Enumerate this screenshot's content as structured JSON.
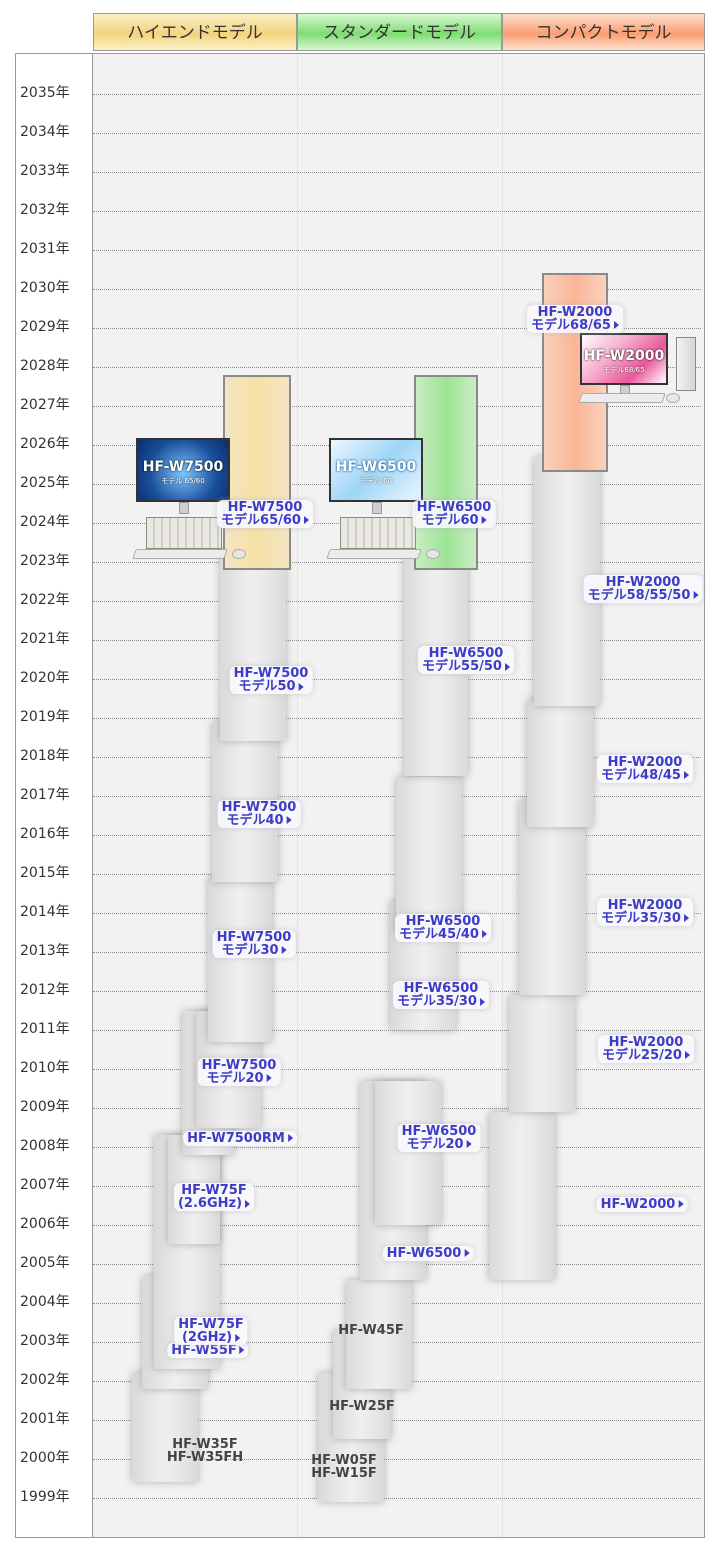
{
  "headers": {
    "high": "ハイエンドモデル",
    "standard": "スタンダードモデル",
    "compact": "コンパクトモデル"
  },
  "years": [
    "2035年",
    "2034年",
    "2033年",
    "2032年",
    "2031年",
    "2030年",
    "2029年",
    "2028年",
    "2027年",
    "2026年",
    "2025年",
    "2024年",
    "2023年",
    "2022年",
    "2021年",
    "2020年",
    "2019年",
    "2018年",
    "2017年",
    "2016年",
    "2015年",
    "2014年",
    "2013年",
    "2012年",
    "2011年",
    "2010年",
    "2009年",
    "2008年",
    "2007年",
    "2006年",
    "2005年",
    "2004年",
    "2003年",
    "2002年",
    "2001年",
    "2000年",
    "1999年"
  ],
  "products": [
    {
      "column": "high",
      "lines": [
        "HF-W35F",
        "HF-W35FH"
      ],
      "link": false,
      "from": 1999.4,
      "to": 2002.2
    },
    {
      "column": "high",
      "lines": [
        "HF-W55F"
      ],
      "link": true,
      "from": 2001.8,
      "to": 2004.7
    },
    {
      "column": "high",
      "lines": [
        "HF-W75F",
        "(2GHz)"
      ],
      "link": true,
      "from": 2002.3,
      "to": 2008.3
    },
    {
      "column": "high",
      "lines": [
        "HF-W75F",
        "(2.6GHz)"
      ],
      "link": true,
      "from": 2005.5,
      "to": 2008.3
    },
    {
      "column": "high",
      "lines": [
        "HF-W7500RM"
      ],
      "link": true,
      "from": 2007.8,
      "to": 2011.5
    },
    {
      "column": "high",
      "lines": [
        "HF-W7500",
        "モデル20"
      ],
      "link": true,
      "from": 2008.5,
      "to": 2011.5
    },
    {
      "column": "high",
      "lines": [
        "HF-W7500",
        "モデル30"
      ],
      "link": true,
      "from": 2010.7,
      "to": 2014.9
    },
    {
      "column": "high",
      "lines": [
        "HF-W7500",
        "モデル40"
      ],
      "link": true,
      "from": 2014.8,
      "to": 2018.9
    },
    {
      "column": "high",
      "lines": [
        "HF-W7500",
        "モデル50"
      ],
      "link": true,
      "from": 2018.4,
      "to": 2023.3
    },
    {
      "column": "high",
      "lines": [
        "HF-W7500",
        "モデル65/60"
      ],
      "link": true,
      "from": 2022.8,
      "to": 2027.8,
      "current": true
    },
    {
      "column": "standard",
      "lines": [
        "HF-W05F",
        "HF-W15F"
      ],
      "link": false,
      "from": 1998.9,
      "to": 2002.2
    },
    {
      "column": "standard",
      "lines": [
        "HF-W25F"
      ],
      "link": false,
      "from": 2000.5,
      "to": 2003.3
    },
    {
      "column": "standard",
      "lines": [
        "HF-W45F"
      ],
      "link": false,
      "from": 2001.8,
      "to": 2004.6
    },
    {
      "column": "standard",
      "lines": [
        "HF-W6500"
      ],
      "link": true,
      "from": 2004.6,
      "to": 2009.7
    },
    {
      "column": "standard",
      "lines": [
        "HF-W6500",
        "モデル20"
      ],
      "link": true,
      "from": 2006.0,
      "to": 2009.7
    },
    {
      "column": "standard",
      "lines": [
        "HF-W6500",
        "モデル35/30"
      ],
      "link": true,
      "from": 2011.0,
      "to": 2014.3
    },
    {
      "column": "standard",
      "lines": [
        "HF-W6500",
        "モデル45/40"
      ],
      "link": true,
      "from": 2013.5,
      "to": 2017.5
    },
    {
      "column": "standard",
      "lines": [
        "HF-W6500",
        "モデル55/50"
      ],
      "link": true,
      "from": 2017.5,
      "to": 2023.3
    },
    {
      "column": "standard",
      "lines": [
        "HF-W6500",
        "モデル60"
      ],
      "link": true,
      "from": 2022.8,
      "to": 2027.8,
      "current": true
    },
    {
      "column": "compact",
      "lines": [
        "HF-W2000"
      ],
      "link": true,
      "from": 2004.6,
      "to": 2008.9
    },
    {
      "column": "compact",
      "lines": [
        "HF-W2000",
        "モデル25/20"
      ],
      "link": true,
      "from": 2008.9,
      "to": 2011.9
    },
    {
      "column": "compact",
      "lines": [
        "HF-W2000",
        "モデル35/30"
      ],
      "link": true,
      "from": 2011.9,
      "to": 2016.9
    },
    {
      "column": "compact",
      "lines": [
        "HF-W2000",
        "モデル48/45"
      ],
      "link": true,
      "from": 2016.2,
      "to": 2019.5
    },
    {
      "column": "compact",
      "lines": [
        "HF-W2000",
        "モデル58/55/50"
      ],
      "link": true,
      "from": 2019.3,
      "to": 2025.7
    },
    {
      "column": "compact",
      "lines": [
        "HF-W2000",
        "モデル68/65"
      ],
      "link": true,
      "from": 2025.3,
      "to": 2030.4,
      "current": true
    }
  ],
  "pc_images": {
    "high": {
      "name": "HF-W7500",
      "sub": "モデル 65/60",
      "color": "#1a4f9c"
    },
    "standard": {
      "name": "HF-W6500",
      "sub": "モデル 60",
      "color": "#6fb7e9"
    },
    "compact": {
      "name": "HF-W2000",
      "sub": "モデル68/65",
      "color": "#e8589a"
    }
  },
  "colors": {
    "high": "#f3d47e",
    "standard": "#7fdd72",
    "compact": "#f99e70",
    "link": "#3c3cc8"
  }
}
